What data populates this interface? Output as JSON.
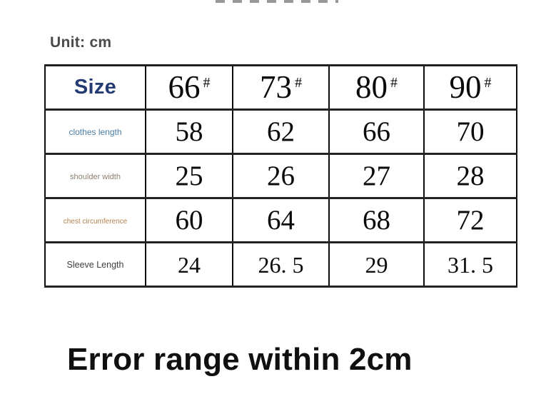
{
  "unit_label": "Unit: cm",
  "table": {
    "header": {
      "size_label": "Size",
      "size_label_color": "#233a73",
      "columns": [
        {
          "num": "66",
          "mark": "#"
        },
        {
          "num": "73",
          "mark": "#"
        },
        {
          "num": "80",
          "mark": "#"
        },
        {
          "num": "90",
          "mark": "#"
        }
      ]
    },
    "rows": [
      {
        "label": "clothes length",
        "label_color": "#4a7ca3",
        "values": [
          "58",
          "62",
          "66",
          "70"
        ]
      },
      {
        "label": "shoulder width",
        "label_color": "#8c8172",
        "values": [
          "25",
          "26",
          "27",
          "28"
        ]
      },
      {
        "label": "chest circumference",
        "label_color": "#b08350",
        "values": [
          "60",
          "64",
          "68",
          "72"
        ]
      },
      {
        "label": "Sleeve Length",
        "label_color": "#3f3f3f",
        "values": [
          "24",
          "26. 5",
          "29",
          "31. 5"
        ]
      }
    ]
  },
  "footer_note": "Error range within 2cm",
  "colors": {
    "table_border": "#0d0d0d",
    "number_text": "#0a0a0a",
    "unit_text": "#4a4a4a",
    "footer_text": "#101010"
  }
}
